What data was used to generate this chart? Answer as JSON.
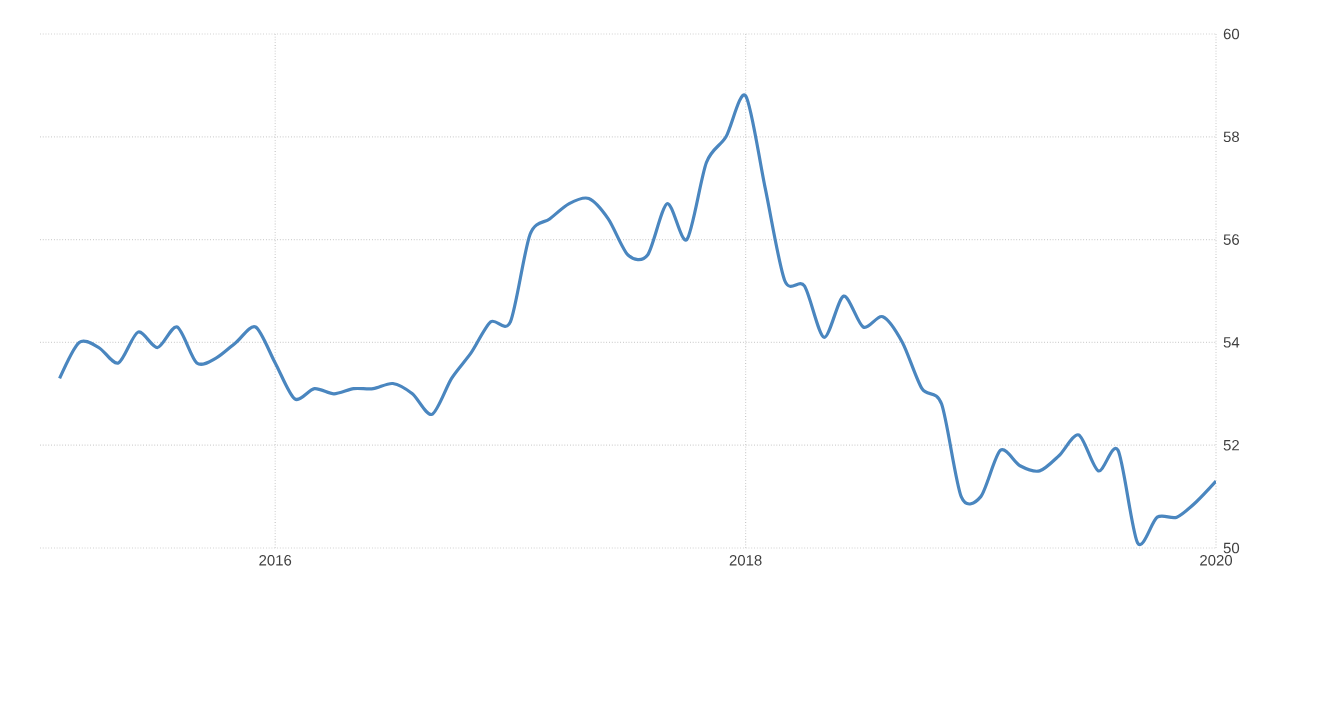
{
  "chart_data": {
    "type": "line",
    "x": [
      "2015-02",
      "2015-03",
      "2015-04",
      "2015-05",
      "2015-06",
      "2015-07",
      "2015-08",
      "2015-09",
      "2015-10",
      "2015-11",
      "2015-12",
      "2016-01",
      "2016-02",
      "2016-03",
      "2016-04",
      "2016-05",
      "2016-06",
      "2016-07",
      "2016-08",
      "2016-09",
      "2016-10",
      "2016-11",
      "2016-12",
      "2017-01",
      "2017-02",
      "2017-03",
      "2017-04",
      "2017-05",
      "2017-06",
      "2017-07",
      "2017-08",
      "2017-09",
      "2017-10",
      "2017-11",
      "2017-12",
      "2018-01",
      "2018-02",
      "2018-03",
      "2018-04",
      "2018-05",
      "2018-06",
      "2018-07",
      "2018-08",
      "2018-09",
      "2018-10",
      "2018-11",
      "2018-12",
      "2019-01",
      "2019-02",
      "2019-03",
      "2019-04",
      "2019-05",
      "2019-06",
      "2019-07",
      "2019-08",
      "2019-09",
      "2019-10",
      "2019-11",
      "2019-12",
      "2020-01"
    ],
    "series": [
      {
        "color": "#4a86bf",
        "values": [
          53.3,
          54.0,
          53.9,
          53.6,
          54.2,
          53.9,
          54.3,
          53.6,
          53.7,
          54.0,
          54.3,
          53.6,
          52.9,
          53.1,
          53.0,
          53.1,
          53.1,
          53.2,
          53.0,
          52.6,
          53.3,
          53.8,
          54.4,
          54.4,
          56.1,
          56.4,
          56.7,
          56.8,
          56.4,
          55.7,
          55.7,
          56.7,
          56.0,
          57.5,
          58.0,
          58.8,
          57.0,
          55.2,
          55.1,
          54.1,
          54.9,
          54.3,
          54.5,
          54.0,
          53.1,
          52.8,
          51.0,
          51.0,
          51.9,
          51.6,
          51.5,
          51.8,
          52.2,
          51.5,
          51.9,
          50.1,
          50.6,
          50.6,
          50.9,
          51.3
        ]
      }
    ],
    "xlim": [
      "2015-01",
      "2020-01"
    ],
    "xticks": [
      "2016",
      "2018",
      "2020"
    ],
    "ylim": [
      50,
      60
    ],
    "yticks": [
      50,
      52,
      54,
      56,
      58,
      60
    ],
    "grid": true
  }
}
